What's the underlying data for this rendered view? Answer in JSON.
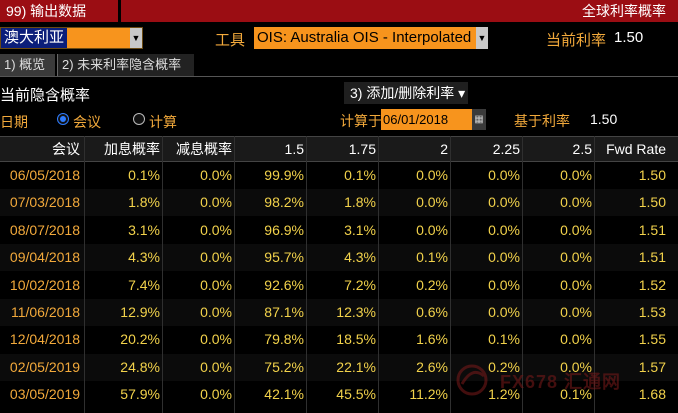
{
  "topbar": {
    "left_label": "99) 输出数据",
    "right_label": "全球利率概率"
  },
  "controls": {
    "country": "澳大利亚",
    "tool_label": "工具",
    "tool_value": "OIS: Australia OIS - Interpolated",
    "current_rate_label": "当前利率",
    "current_rate_value": "1.50"
  },
  "tabs": [
    {
      "label": "1) 概览"
    },
    {
      "label": "2) 未来利率隐含概率"
    }
  ],
  "section": {
    "title": "当前隐含概率",
    "add_remove": "3) 添加/删除利率 ▾"
  },
  "options": {
    "date_label": "日期",
    "radio_meeting": "会议",
    "radio_calc": "计算",
    "calc_label": "计算于",
    "calc_date": "06/01/2018",
    "base_label": "基于利率",
    "base_value": "1.50"
  },
  "table": {
    "headers": [
      "会议",
      "加息概率",
      "减息概率",
      "1.5",
      "1.75",
      "2",
      "2.25",
      "2.5",
      "Fwd Rate"
    ],
    "rows": [
      [
        "06/05/2018",
        "0.1%",
        "0.0%",
        "99.9%",
        "0.1%",
        "0.0%",
        "0.0%",
        "0.0%",
        "1.50"
      ],
      [
        "07/03/2018",
        "1.8%",
        "0.0%",
        "98.2%",
        "1.8%",
        "0.0%",
        "0.0%",
        "0.0%",
        "1.50"
      ],
      [
        "08/07/2018",
        "3.1%",
        "0.0%",
        "96.9%",
        "3.1%",
        "0.0%",
        "0.0%",
        "0.0%",
        "1.51"
      ],
      [
        "09/04/2018",
        "4.3%",
        "0.0%",
        "95.7%",
        "4.3%",
        "0.1%",
        "0.0%",
        "0.0%",
        "1.51"
      ],
      [
        "10/02/2018",
        "7.4%",
        "0.0%",
        "92.6%",
        "7.2%",
        "0.2%",
        "0.0%",
        "0.0%",
        "1.52"
      ],
      [
        "11/06/2018",
        "12.9%",
        "0.0%",
        "87.1%",
        "12.3%",
        "0.6%",
        "0.0%",
        "0.0%",
        "1.53"
      ],
      [
        "12/04/2018",
        "20.2%",
        "0.0%",
        "79.8%",
        "18.5%",
        "1.6%",
        "0.1%",
        "0.0%",
        "1.55"
      ],
      [
        "02/05/2019",
        "24.8%",
        "0.0%",
        "75.2%",
        "22.1%",
        "2.6%",
        "0.2%",
        "0.0%",
        "1.57"
      ],
      [
        "03/05/2019",
        "57.9%",
        "0.0%",
        "42.1%",
        "45.5%",
        "11.2%",
        "1.2%",
        "0.1%",
        "1.68"
      ]
    ]
  },
  "watermark": {
    "text": "FX678 汇通网"
  },
  "colors": {
    "topbar": "#9b0d13",
    "accent_orange": "#f7941d",
    "label_orange": "#f2a93b",
    "value_yellow": "#f2d24b"
  }
}
